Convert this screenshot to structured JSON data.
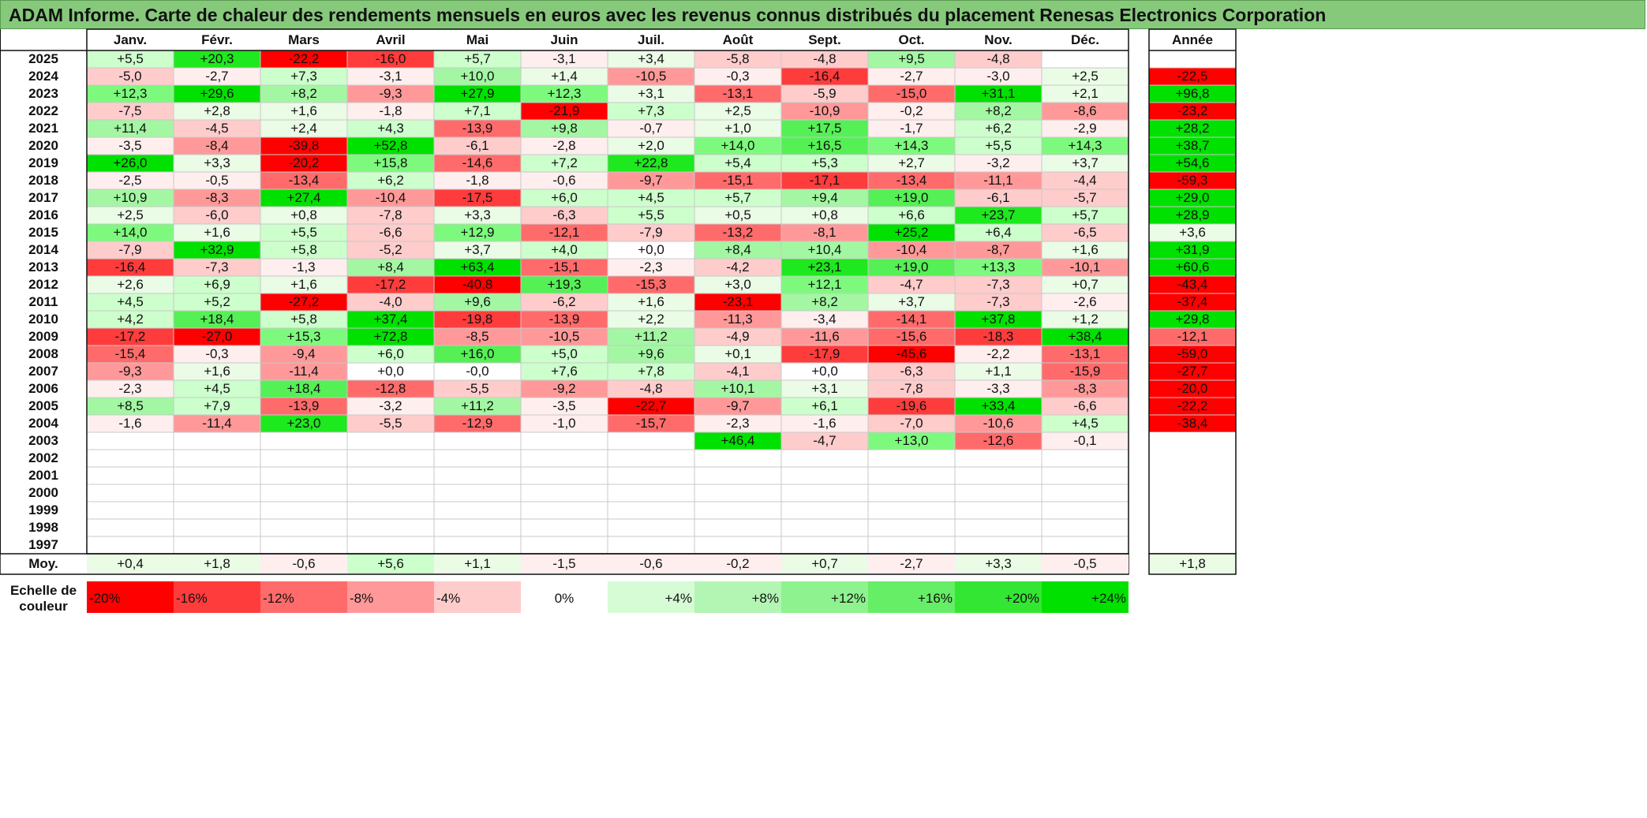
{
  "title": "ADAM Informe. Carte de chaleur des rendements mensuels en euros avec les revenus connus distribués du placement Renesas Electronics Corporation",
  "chart_data": {
    "type": "heatmap",
    "months": [
      "Janv.",
      "Févr.",
      "Mars",
      "Avril",
      "Mai",
      "Juin",
      "Juil.",
      "Août",
      "Sept.",
      "Oct.",
      "Nov.",
      "Déc."
    ],
    "year_header": "Année",
    "rows": [
      {
        "year": "2025",
        "months": [
          "+5,5",
          "+20,3",
          "-22,2",
          "-16,0",
          "+5,7",
          "-3,1",
          "+3,4",
          "-5,8",
          "-4,8",
          "+9,5",
          "-4,8",
          ""
        ],
        "annual": ""
      },
      {
        "year": "2024",
        "months": [
          "-5,0",
          "-2,7",
          "+7,3",
          "-3,1",
          "+10,0",
          "+1,4",
          "-10,5",
          "-0,3",
          "-16,4",
          "-2,7",
          "-3,0",
          "+2,5"
        ],
        "annual": "-22,5"
      },
      {
        "year": "2023",
        "months": [
          "+12,3",
          "+29,6",
          "+8,2",
          "-9,3",
          "+27,9",
          "+12,3",
          "+3,1",
          "-13,1",
          "-5,9",
          "-15,0",
          "+31,1",
          "+2,1"
        ],
        "annual": "+96,8"
      },
      {
        "year": "2022",
        "months": [
          "-7,5",
          "+2,8",
          "+1,6",
          "-1,8",
          "+7,1",
          "-21,9",
          "+7,3",
          "+2,5",
          "-10,9",
          "-0,2",
          "+8,2",
          "-8,6"
        ],
        "annual": "-23,2"
      },
      {
        "year": "2021",
        "months": [
          "+11,4",
          "-4,5",
          "+2,4",
          "+4,3",
          "-13,9",
          "+9,8",
          "-0,7",
          "+1,0",
          "+17,5",
          "-1,7",
          "+6,2",
          "-2,9"
        ],
        "annual": "+28,2"
      },
      {
        "year": "2020",
        "months": [
          "-3,5",
          "-8,4",
          "-39,8",
          "+52,8",
          "-6,1",
          "-2,8",
          "+2,0",
          "+14,0",
          "+16,5",
          "+14,3",
          "+5,5",
          "+14,3"
        ],
        "annual": "+38,7"
      },
      {
        "year": "2019",
        "months": [
          "+26,0",
          "+3,3",
          "-20,2",
          "+15,8",
          "-14,6",
          "+7,2",
          "+22,8",
          "+5,4",
          "+5,3",
          "+2,7",
          "-3,2",
          "+3,7"
        ],
        "annual": "+54,6"
      },
      {
        "year": "2018",
        "months": [
          "-2,5",
          "-0,5",
          "-13,4",
          "+6,2",
          "-1,8",
          "-0,6",
          "-9,7",
          "-15,1",
          "-17,1",
          "-13,4",
          "-11,1",
          "-4,4"
        ],
        "annual": "-59,3"
      },
      {
        "year": "2017",
        "months": [
          "+10,9",
          "-8,3",
          "+27,4",
          "-10,4",
          "-17,5",
          "+6,0",
          "+4,5",
          "+5,7",
          "+9,4",
          "+19,0",
          "-6,1",
          "-5,7"
        ],
        "annual": "+29,0"
      },
      {
        "year": "2016",
        "months": [
          "+2,5",
          "-6,0",
          "+0,8",
          "-7,8",
          "+3,3",
          "-6,3",
          "+5,5",
          "+0,5",
          "+0,8",
          "+6,6",
          "+23,7",
          "+5,7"
        ],
        "annual": "+28,9"
      },
      {
        "year": "2015",
        "months": [
          "+14,0",
          "+1,6",
          "+5,5",
          "-6,6",
          "+12,9",
          "-12,1",
          "-7,9",
          "-13,2",
          "-8,1",
          "+25,2",
          "+6,4",
          "-6,5"
        ],
        "annual": "+3,6"
      },
      {
        "year": "2014",
        "months": [
          "-7,9",
          "+32,9",
          "+5,8",
          "-5,2",
          "+3,7",
          "+4,0",
          "+0,0",
          "+8,4",
          "+10,4",
          "-10,4",
          "-8,7",
          "+1,6"
        ],
        "annual": "+31,9"
      },
      {
        "year": "2013",
        "months": [
          "-16,4",
          "-7,3",
          "-1,3",
          "+8,4",
          "+63,4",
          "-15,1",
          "-2,3",
          "-4,2",
          "+23,1",
          "+19,0",
          "+13,3",
          "-10,1"
        ],
        "annual": "+60,6"
      },
      {
        "year": "2012",
        "months": [
          "+2,6",
          "+6,9",
          "+1,6",
          "-17,2",
          "-40,8",
          "+19,3",
          "-15,3",
          "+3,0",
          "+12,1",
          "-4,7",
          "-7,3",
          "+0,7"
        ],
        "annual": "-43,4"
      },
      {
        "year": "2011",
        "months": [
          "+4,5",
          "+5,2",
          "-27,2",
          "-4,0",
          "+9,6",
          "-6,2",
          "+1,6",
          "-23,1",
          "+8,2",
          "+3,7",
          "-7,3",
          "-2,6"
        ],
        "annual": "-37,4"
      },
      {
        "year": "2010",
        "months": [
          "+4,2",
          "+18,4",
          "+5,8",
          "+37,4",
          "-19,8",
          "-13,9",
          "+2,2",
          "-11,3",
          "-3,4",
          "-14,1",
          "+37,8",
          "+1,2"
        ],
        "annual": "+29,8"
      },
      {
        "year": "2009",
        "months": [
          "-17,2",
          "-27,0",
          "+15,3",
          "+72,8",
          "-8,5",
          "-10,5",
          "+11,2",
          "-4,9",
          "-11,6",
          "-15,6",
          "-18,3",
          "+38,4"
        ],
        "annual": "-12,1"
      },
      {
        "year": "2008",
        "months": [
          "-15,4",
          "-0,3",
          "-9,4",
          "+6,0",
          "+16,0",
          "+5,0",
          "+9,6",
          "+0,1",
          "-17,9",
          "-45,6",
          "-2,2",
          "-13,1"
        ],
        "annual": "-59,0"
      },
      {
        "year": "2007",
        "months": [
          "-9,3",
          "+1,6",
          "-11,4",
          "+0,0",
          "-0,0",
          "+7,6",
          "+7,8",
          "-4,1",
          "+0,0",
          "-6,3",
          "+1,1",
          "-15,9"
        ],
        "annual": "-27,7"
      },
      {
        "year": "2006",
        "months": [
          "-2,3",
          "+4,5",
          "+18,4",
          "-12,8",
          "-5,5",
          "-9,2",
          "-4,8",
          "+10,1",
          "+3,1",
          "-7,8",
          "-3,3",
          "-8,3"
        ],
        "annual": "-20,0"
      },
      {
        "year": "2005",
        "months": [
          "+8,5",
          "+7,9",
          "-13,9",
          "-3,2",
          "+11,2",
          "-3,5",
          "-22,7",
          "-9,7",
          "+6,1",
          "-19,6",
          "+33,4",
          "-6,6"
        ],
        "annual": "-22,2"
      },
      {
        "year": "2004",
        "months": [
          "-1,6",
          "-11,4",
          "+23,0",
          "-5,5",
          "-12,9",
          "-1,0",
          "-15,7",
          "-2,3",
          "-1,6",
          "-7,0",
          "-10,6",
          "+4,5"
        ],
        "annual": "-38,4"
      },
      {
        "year": "2003",
        "months": [
          "",
          "",
          "",
          "",
          "",
          "",
          "",
          "+46,4",
          "-4,7",
          "+13,0",
          "-12,6",
          "-0,1"
        ],
        "annual": ""
      },
      {
        "year": "2002",
        "months": [
          "",
          "",
          "",
          "",
          "",
          "",
          "",
          "",
          "",
          "",
          "",
          ""
        ],
        "annual": ""
      },
      {
        "year": "2001",
        "months": [
          "",
          "",
          "",
          "",
          "",
          "",
          "",
          "",
          "",
          "",
          "",
          ""
        ],
        "annual": ""
      },
      {
        "year": "2000",
        "months": [
          "",
          "",
          "",
          "",
          "",
          "",
          "",
          "",
          "",
          "",
          "",
          ""
        ],
        "annual": ""
      },
      {
        "year": "1999",
        "months": [
          "",
          "",
          "",
          "",
          "",
          "",
          "",
          "",
          "",
          "",
          "",
          ""
        ],
        "annual": ""
      },
      {
        "year": "1998",
        "months": [
          "",
          "",
          "",
          "",
          "",
          "",
          "",
          "",
          "",
          "",
          "",
          ""
        ],
        "annual": ""
      },
      {
        "year": "1997",
        "months": [
          "",
          "",
          "",
          "",
          "",
          "",
          "",
          "",
          "",
          "",
          "",
          ""
        ],
        "annual": ""
      }
    ],
    "average": {
      "label": "Moy.",
      "months": [
        "+0,4",
        "+1,8",
        "-0,6",
        "+5,6",
        "+1,1",
        "-1,5",
        "-0,6",
        "-0,2",
        "+0,7",
        "-2,7",
        "+3,3",
        "-0,5"
      ],
      "annual": "+1,8"
    },
    "scale": {
      "label_line1": "Echelle de",
      "label_line2": "couleur",
      "steps": [
        "-20%",
        "-16%",
        "-12%",
        "-8%",
        "-4%",
        "0%",
        "+4%",
        "+8%",
        "+12%",
        "+16%",
        "+20%",
        "+24%"
      ]
    },
    "colors": {
      "negative": [
        "#ff0000",
        "#ff3c3c",
        "#ff6b6b",
        "#ff9999",
        "#ffcccc",
        "#ffeeee"
      ],
      "neutral": "#ffffff",
      "positive": [
        "#eafbe6",
        "#ccffcc",
        "#a3f7a3",
        "#7dfa7d",
        "#55f055",
        "#1ee81e",
        "#00e100"
      ],
      "title_bg": "#86c97b"
    }
  }
}
